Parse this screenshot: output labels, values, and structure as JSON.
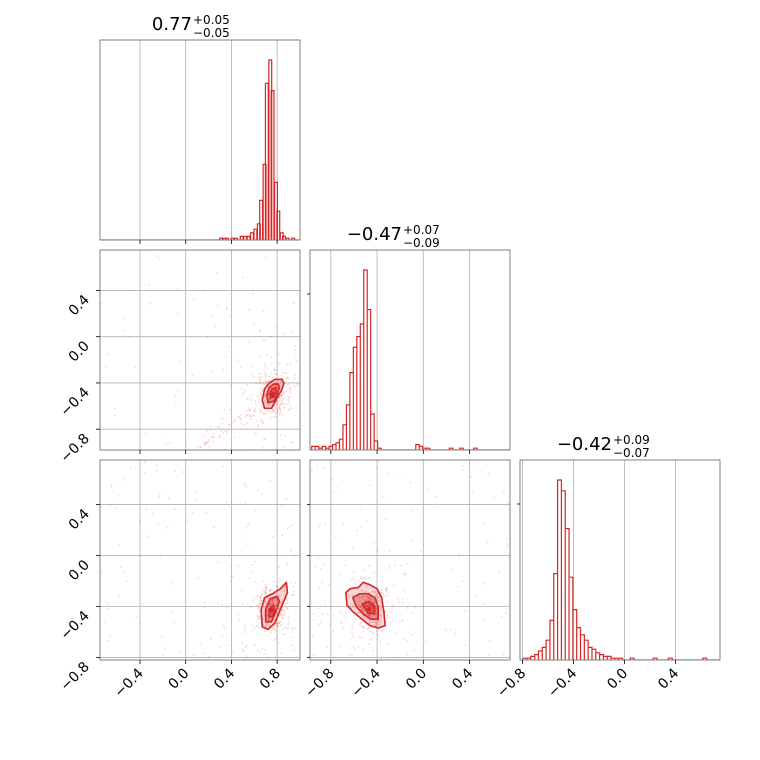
{
  "chart_data": {
    "type": "corner",
    "accent_color": "#d62728",
    "grid": true,
    "titles": [
      {
        "value": "0.77",
        "plus": "+0.05",
        "minus": "−0.05"
      },
      {
        "value": "−0.47",
        "plus": "+0.07",
        "minus": "−0.09"
      },
      {
        "value": "−0.42",
        "plus": "+0.09",
        "minus": "−0.07"
      }
    ],
    "ranges": [
      [
        -0.75,
        1.0
      ],
      [
        -0.98,
        0.75
      ],
      [
        -0.82,
        0.75
      ]
    ],
    "ticks": [
      {
        "values": [
          -0.4,
          0.0,
          0.4,
          0.8
        ],
        "labels": [
          "−0.4",
          "0.0",
          "0.4",
          "0.8"
        ]
      },
      {
        "values": [
          -0.8,
          -0.4,
          0.0,
          0.4
        ],
        "labels": [
          "−0.8",
          "−0.4",
          "0.0",
          "0.4"
        ]
      },
      {
        "values": [
          -0.8,
          -0.4,
          0.0,
          0.4
        ],
        "labels": [
          "−0.8",
          "−0.4",
          "0.0",
          "0.4"
        ]
      }
    ],
    "histograms": [
      {
        "bin_width": 0.025,
        "bins": [
          [
            0.31,
            0.01
          ],
          [
            0.34,
            0.01
          ],
          [
            0.36,
            0.01
          ],
          [
            0.41,
            0.01
          ],
          [
            0.44,
            0.01
          ],
          [
            0.49,
            0.02
          ],
          [
            0.52,
            0.02
          ],
          [
            0.55,
            0.02
          ],
          [
            0.58,
            0.04
          ],
          [
            0.61,
            0.06
          ],
          [
            0.64,
            0.09
          ],
          [
            0.66,
            0.22
          ],
          [
            0.69,
            0.42
          ],
          [
            0.71,
            0.87
          ],
          [
            0.74,
            1.0
          ],
          [
            0.76,
            0.83
          ],
          [
            0.79,
            0.32
          ],
          [
            0.81,
            0.16
          ],
          [
            0.84,
            0.04
          ],
          [
            0.86,
            0.02
          ],
          [
            0.89,
            0.01
          ],
          [
            0.94,
            0.01
          ]
        ]
      },
      {
        "bin_width": 0.03,
        "bins": [
          [
            -0.95,
            0.02
          ],
          [
            -0.92,
            0.02
          ],
          [
            -0.89,
            0.01
          ],
          [
            -0.86,
            0.02
          ],
          [
            -0.83,
            0.01
          ],
          [
            -0.8,
            0.02
          ],
          [
            -0.77,
            0.03
          ],
          [
            -0.74,
            0.04
          ],
          [
            -0.71,
            0.06
          ],
          [
            -0.68,
            0.14
          ],
          [
            -0.65,
            0.25
          ],
          [
            -0.62,
            0.43
          ],
          [
            -0.59,
            0.57
          ],
          [
            -0.56,
            0.63
          ],
          [
            -0.53,
            0.7
          ],
          [
            -0.5,
            1.0
          ],
          [
            -0.47,
            0.78
          ],
          [
            -0.44,
            0.2
          ],
          [
            -0.41,
            0.05
          ],
          [
            -0.38,
            0.01
          ],
          [
            -0.05,
            0.03
          ],
          [
            -0.02,
            0.02
          ],
          [
            0.01,
            0.01
          ],
          [
            0.04,
            0.01
          ],
          [
            0.24,
            0.01
          ],
          [
            0.33,
            0.01
          ],
          [
            0.45,
            0.01
          ]
        ]
      },
      {
        "bin_width": 0.03,
        "bins": [
          [
            -0.78,
            0.01
          ],
          [
            -0.75,
            0.01
          ],
          [
            -0.72,
            0.02
          ],
          [
            -0.69,
            0.03
          ],
          [
            -0.66,
            0.05
          ],
          [
            -0.63,
            0.07
          ],
          [
            -0.6,
            0.11
          ],
          [
            -0.57,
            0.22
          ],
          [
            -0.54,
            0.48
          ],
          [
            -0.51,
            1.0
          ],
          [
            -0.48,
            0.94
          ],
          [
            -0.45,
            0.73
          ],
          [
            -0.42,
            0.46
          ],
          [
            -0.39,
            0.28
          ],
          [
            -0.36,
            0.18
          ],
          [
            -0.33,
            0.14
          ],
          [
            -0.3,
            0.11
          ],
          [
            -0.27,
            0.07
          ],
          [
            -0.24,
            0.06
          ],
          [
            -0.21,
            0.04
          ],
          [
            -0.18,
            0.03
          ],
          [
            -0.15,
            0.02
          ],
          [
            -0.12,
            0.02
          ],
          [
            -0.09,
            0.01
          ],
          [
            -0.06,
            0.01
          ],
          [
            -0.03,
            0.01
          ],
          [
            0.06,
            0.01
          ],
          [
            0.24,
            0.01
          ],
          [
            0.36,
            0.01
          ],
          [
            0.63,
            0.01
          ]
        ]
      }
    ],
    "contours_2d": [
      {
        "x_param": 0,
        "y_param": 1,
        "center": [
          0.76,
          -0.5
        ],
        "levels": [
          [
            [
              0.69,
              -0.62
            ],
            [
              0.67,
              -0.55
            ],
            [
              0.69,
              -0.45
            ],
            [
              0.73,
              -0.4
            ],
            [
              0.78,
              -0.37
            ],
            [
              0.84,
              -0.37
            ],
            [
              0.86,
              -0.4
            ],
            [
              0.84,
              -0.46
            ],
            [
              0.8,
              -0.53
            ],
            [
              0.75,
              -0.62
            ]
          ],
          [
            [
              0.72,
              -0.57
            ],
            [
              0.71,
              -0.5
            ],
            [
              0.73,
              -0.44
            ],
            [
              0.77,
              -0.41
            ],
            [
              0.81,
              -0.41
            ],
            [
              0.82,
              -0.44
            ],
            [
              0.8,
              -0.5
            ],
            [
              0.77,
              -0.56
            ]
          ],
          [
            [
              0.74,
              -0.53
            ],
            [
              0.74,
              -0.48
            ],
            [
              0.76,
              -0.45
            ],
            [
              0.79,
              -0.44
            ],
            [
              0.79,
              -0.48
            ],
            [
              0.77,
              -0.52
            ]
          ]
        ]
      },
      {
        "x_param": 0,
        "y_param": 2,
        "center": [
          0.75,
          -0.43
        ],
        "levels": [
          [
            [
              0.67,
              -0.56
            ],
            [
              0.66,
              -0.43
            ],
            [
              0.69,
              -0.33
            ],
            [
              0.76,
              -0.3
            ],
            [
              0.83,
              -0.26
            ],
            [
              0.88,
              -0.21
            ],
            [
              0.89,
              -0.29
            ],
            [
              0.83,
              -0.42
            ],
            [
              0.78,
              -0.53
            ],
            [
              0.72,
              -0.58
            ]
          ],
          [
            [
              0.7,
              -0.52
            ],
            [
              0.7,
              -0.42
            ],
            [
              0.74,
              -0.34
            ],
            [
              0.8,
              -0.32
            ],
            [
              0.82,
              -0.36
            ],
            [
              0.78,
              -0.46
            ],
            [
              0.75,
              -0.52
            ]
          ],
          [
            [
              0.73,
              -0.48
            ],
            [
              0.73,
              -0.42
            ],
            [
              0.77,
              -0.39
            ],
            [
              0.78,
              -0.44
            ],
            [
              0.76,
              -0.48
            ]
          ]
        ]
      },
      {
        "x_param": 1,
        "y_param": 2,
        "center": [
          -0.47,
          -0.42
        ],
        "levels": [
          [
            [
              -0.67,
              -0.29
            ],
            [
              -0.63,
              -0.26
            ],
            [
              -0.56,
              -0.25
            ],
            [
              -0.52,
              -0.21
            ],
            [
              -0.46,
              -0.23
            ],
            [
              -0.4,
              -0.26
            ],
            [
              -0.36,
              -0.33
            ],
            [
              -0.34,
              -0.45
            ],
            [
              -0.33,
              -0.55
            ],
            [
              -0.39,
              -0.57
            ],
            [
              -0.46,
              -0.55
            ],
            [
              -0.53,
              -0.5
            ],
            [
              -0.61,
              -0.44
            ],
            [
              -0.66,
              -0.39
            ]
          ],
          [
            [
              -0.61,
              -0.33
            ],
            [
              -0.55,
              -0.3
            ],
            [
              -0.48,
              -0.3
            ],
            [
              -0.42,
              -0.33
            ],
            [
              -0.39,
              -0.4
            ],
            [
              -0.39,
              -0.5
            ],
            [
              -0.45,
              -0.5
            ],
            [
              -0.52,
              -0.46
            ],
            [
              -0.58,
              -0.4
            ]
          ],
          [
            [
              -0.53,
              -0.38
            ],
            [
              -0.47,
              -0.36
            ],
            [
              -0.42,
              -0.4
            ],
            [
              -0.42,
              -0.46
            ],
            [
              -0.48,
              -0.45
            ]
          ]
        ]
      }
    ]
  }
}
